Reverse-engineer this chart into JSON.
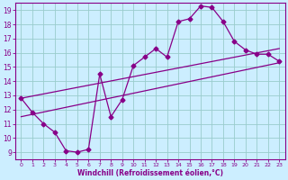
{
  "xlabel": "Windchill (Refroidissement éolien,°C)",
  "bg_color": "#cceeff",
  "line_color": "#880088",
  "grid_color": "#99cccc",
  "spine_color": "#880088",
  "xlim": [
    -0.5,
    23.5
  ],
  "ylim": [
    8.5,
    19.5
  ],
  "xticks": [
    0,
    1,
    2,
    3,
    4,
    5,
    6,
    7,
    8,
    9,
    10,
    11,
    12,
    13,
    14,
    15,
    16,
    17,
    18,
    19,
    20,
    21,
    22,
    23
  ],
  "yticks": [
    9,
    10,
    11,
    12,
    13,
    14,
    15,
    16,
    17,
    18,
    19
  ],
  "line1_x": [
    0,
    1,
    2,
    3,
    4,
    5,
    6,
    7,
    8,
    9,
    10,
    11,
    12,
    13,
    14,
    15,
    16,
    17,
    18,
    19,
    20,
    21,
    22,
    23
  ],
  "line1_y": [
    12.8,
    11.8,
    11.0,
    10.4,
    9.1,
    9.0,
    9.2,
    14.5,
    11.5,
    12.7,
    15.1,
    15.7,
    16.3,
    15.7,
    18.2,
    18.4,
    19.3,
    19.2,
    18.2,
    16.8,
    16.2,
    15.9,
    15.9,
    15.4
  ],
  "line2_x": [
    0,
    23
  ],
  "line2_y": [
    11.5,
    15.3
  ],
  "line3_x": [
    0,
    23
  ],
  "line3_y": [
    12.8,
    16.3
  ]
}
